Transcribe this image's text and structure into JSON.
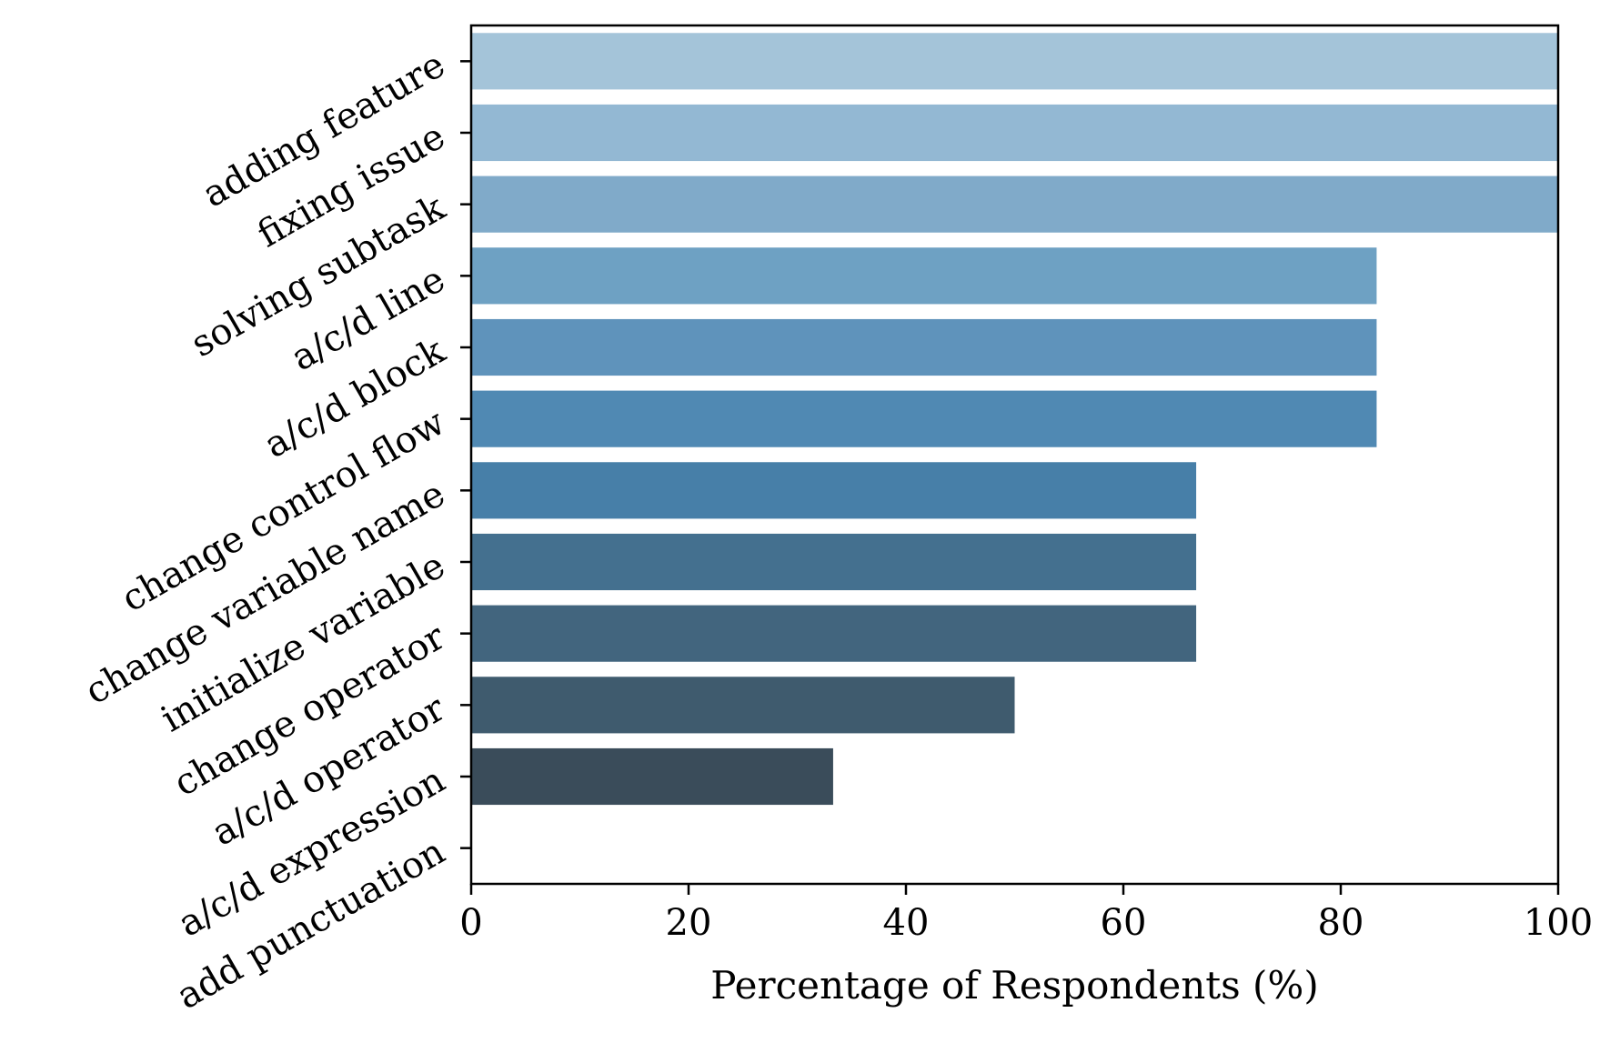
{
  "chart_data": {
    "type": "bar",
    "orientation": "horizontal",
    "categories": [
      "adding feature",
      "fixing issue",
      "solving subtask",
      "a/c/d line",
      "a/c/d block",
      "change control flow",
      "change variable name",
      "initialize variable",
      "change operator",
      "a/c/d operator",
      "a/c/d expression",
      "add punctuation"
    ],
    "values": [
      100,
      100,
      100,
      83.3,
      83.3,
      83.3,
      66.7,
      66.7,
      66.7,
      50.0,
      33.3,
      0
    ],
    "colors": [
      "#a4c4d9",
      "#93b8d3",
      "#80aac9",
      "#6ea1c3",
      "#5f93bb",
      "#5089b3",
      "#477fa8",
      "#44708f",
      "#42657e",
      "#3f5b6e",
      "#3a4c5a",
      "#34404a"
    ],
    "title": "",
    "xlabel": "Percentage of Respondents (%)",
    "ylabel": "",
    "xlim": [
      0,
      100
    ],
    "xticks": [
      0,
      20,
      40,
      60,
      80,
      100
    ],
    "grid": false,
    "legend": "none"
  }
}
